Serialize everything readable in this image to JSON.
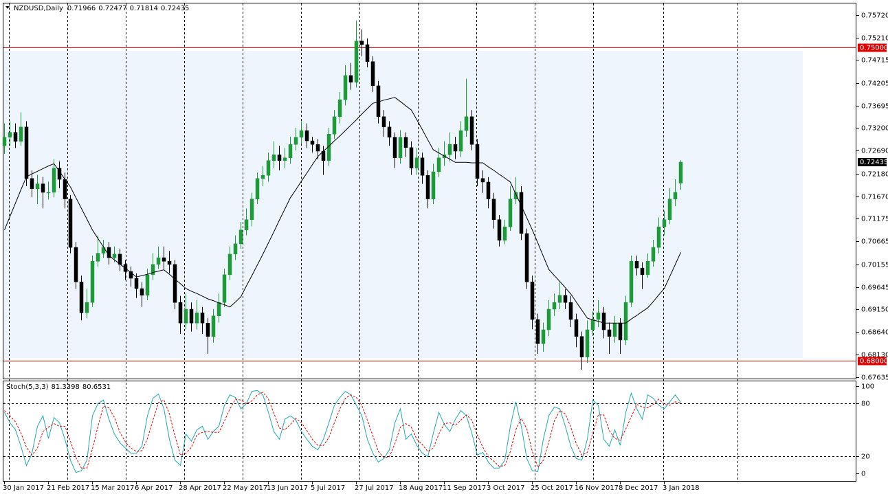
{
  "chart_data": [
    {
      "type": "candlestick",
      "symbol": "NZDUSD,Daily",
      "x": [
        "30 Jan 2017",
        null,
        null,
        null,
        null,
        null,
        null,
        null,
        "21 Feb 2017",
        null,
        null,
        null,
        null,
        null,
        null,
        null,
        "15 Mar 2017",
        null,
        null,
        null,
        null,
        null,
        null,
        null,
        "6 Apr 2017",
        null,
        null,
        null,
        null,
        null,
        null,
        null,
        "28 Apr 2017",
        null,
        null,
        null,
        null,
        null,
        null,
        null,
        "22 May 2017",
        null,
        null,
        null,
        null,
        null,
        null,
        null,
        "13 Jun 2017",
        null,
        null,
        null,
        null,
        null,
        null,
        null,
        "5 Jul 2017",
        null,
        null,
        null,
        null,
        null,
        null,
        null,
        "27 Jul 2017",
        null,
        null,
        null,
        null,
        null,
        null,
        null,
        "18 Aug 2017",
        null,
        null,
        null,
        null,
        null,
        null,
        null,
        "11 Sep 2017",
        null,
        null,
        null,
        null,
        null,
        null,
        null,
        "3 Oct 2017",
        null,
        null,
        null,
        null,
        null,
        null,
        null,
        "25 Oct 2017",
        null,
        null,
        null,
        null,
        null,
        null,
        null,
        "16 Nov 2017",
        null,
        null,
        null,
        null,
        null,
        null,
        null,
        "8 Dec 2017",
        null,
        null,
        null,
        null,
        null,
        null,
        null,
        "3 Jan 2018",
        null,
        null,
        null
      ],
      "open": [
        0.728,
        0.7299,
        0.731,
        0.729,
        0.7322,
        0.7207,
        0.7184,
        0.7195,
        0.7176,
        0.7176,
        0.723,
        0.7205,
        0.7161,
        0.7053,
        0.6976,
        0.6907,
        0.693,
        0.7022,
        0.704,
        0.7053,
        0.703,
        0.7038,
        0.7015,
        0.6999,
        0.6984,
        0.6961,
        0.6946,
        0.6992,
        0.7015,
        0.703,
        0.7022,
        0.7015,
        0.693,
        0.6884,
        0.6915,
        0.6884,
        0.6907,
        0.6884,
        0.6854,
        0.69,
        0.693,
        0.6992,
        0.7038,
        0.7061,
        0.7092,
        0.7115,
        0.7161,
        0.7207,
        0.7214,
        0.7247,
        0.726,
        0.7247,
        0.7253,
        0.7283,
        0.7299,
        0.7314,
        0.7291,
        0.7283,
        0.7268,
        0.7247,
        0.7306,
        0.7345,
        0.7383,
        0.7437,
        0.7422,
        0.7514,
        0.7506,
        0.7468,
        0.7414,
        0.7345,
        0.7322,
        0.7299,
        0.7253,
        0.7299,
        0.7276,
        0.723,
        0.7253,
        0.7214,
        0.7161,
        0.7222,
        0.7253,
        0.726,
        0.7283,
        0.7268,
        0.7314,
        0.7345,
        0.7283,
        0.7207,
        0.7199,
        0.7161,
        0.7115,
        0.7069,
        0.7099,
        0.7161,
        0.7176,
        0.7084,
        0.6976,
        0.6892,
        0.6838,
        0.6869,
        0.6915,
        0.693,
        0.6946,
        0.693,
        0.6892,
        0.6854,
        0.6808,
        0.6869,
        0.6892,
        0.6907,
        0.6869,
        0.6854,
        0.6884,
        0.6846,
        0.693,
        0.7022,
        0.7007,
        0.6992,
        0.7022,
        0.7053,
        0.7099,
        0.7115,
        0.7161,
        0.71966
      ],
      "high": [
        0.733,
        0.7335,
        0.733,
        0.7355,
        0.7335,
        0.7225,
        0.7215,
        0.721,
        0.72,
        0.725,
        0.7245,
        0.722,
        0.717,
        0.7065,
        0.699,
        0.696,
        0.7035,
        0.708,
        0.707,
        0.7065,
        0.7055,
        0.705,
        0.7025,
        0.701,
        0.6995,
        0.6975,
        0.7005,
        0.704,
        0.7055,
        0.7055,
        0.7045,
        0.7025,
        0.6945,
        0.695,
        0.693,
        0.6935,
        0.692,
        0.6895,
        0.6915,
        0.695,
        0.7005,
        0.7055,
        0.708,
        0.711,
        0.714,
        0.7175,
        0.722,
        0.7235,
        0.7265,
        0.729,
        0.728,
        0.7275,
        0.73,
        0.732,
        0.7335,
        0.733,
        0.73,
        0.7295,
        0.728,
        0.732,
        0.736,
        0.74,
        0.746,
        0.7465,
        0.756,
        0.754,
        0.752,
        0.748,
        0.7425,
        0.736,
        0.7335,
        0.731,
        0.7315,
        0.731,
        0.729,
        0.7275,
        0.7265,
        0.7225,
        0.724,
        0.7275,
        0.729,
        0.731,
        0.73,
        0.7335,
        0.743,
        0.736,
        0.7295,
        0.7225,
        0.721,
        0.7175,
        0.7125,
        0.7115,
        0.719,
        0.721,
        0.719,
        0.7095,
        0.699,
        0.6905,
        0.6885,
        0.6935,
        0.695,
        0.6975,
        0.696,
        0.6945,
        0.6905,
        0.6865,
        0.689,
        0.691,
        0.6935,
        0.692,
        0.6885,
        0.69,
        0.6895,
        0.6945,
        0.7035,
        0.7035,
        0.702,
        0.704,
        0.707,
        0.712,
        0.7135,
        0.7185,
        0.7205,
        0.72477
      ],
      "low": [
        0.7262,
        0.728,
        0.7275,
        0.728,
        0.719,
        0.7165,
        0.715,
        0.714,
        0.716,
        0.7165,
        0.7185,
        0.714,
        0.704,
        0.696,
        0.689,
        0.6895,
        0.692,
        0.701,
        0.703,
        0.7015,
        0.702,
        0.7,
        0.698,
        0.6965,
        0.694,
        0.692,
        0.6935,
        0.698,
        0.7005,
        0.7005,
        0.6995,
        0.6915,
        0.686,
        0.687,
        0.6865,
        0.687,
        0.686,
        0.6815,
        0.684,
        0.6885,
        0.692,
        0.698,
        0.7025,
        0.705,
        0.708,
        0.71,
        0.715,
        0.719,
        0.72,
        0.723,
        0.7225,
        0.723,
        0.724,
        0.727,
        0.7285,
        0.7275,
        0.7265,
        0.725,
        0.7215,
        0.7235,
        0.7295,
        0.733,
        0.737,
        0.7405,
        0.741,
        0.748,
        0.7455,
        0.74,
        0.733,
        0.73,
        0.728,
        0.723,
        0.724,
        0.7255,
        0.7215,
        0.7215,
        0.7195,
        0.714,
        0.715,
        0.721,
        0.7235,
        0.7245,
        0.725,
        0.7255,
        0.73,
        0.727,
        0.719,
        0.7175,
        0.714,
        0.7095,
        0.7055,
        0.706,
        0.709,
        0.715,
        0.707,
        0.696,
        0.687,
        0.6815,
        0.682,
        0.6855,
        0.69,
        0.6915,
        0.6915,
        0.6875,
        0.683,
        0.678,
        0.6795,
        0.6855,
        0.6875,
        0.685,
        0.6815,
        0.684,
        0.6815,
        0.6835,
        0.692,
        0.699,
        0.696,
        0.6985,
        0.701,
        0.704,
        0.708,
        0.7105,
        0.7145,
        0.71814
      ],
      "close": [
        0.7299,
        0.731,
        0.729,
        0.7322,
        0.7207,
        0.7184,
        0.7195,
        0.7176,
        0.7176,
        0.723,
        0.7205,
        0.7161,
        0.7053,
        0.6976,
        0.6907,
        0.693,
        0.7022,
        0.704,
        0.7053,
        0.703,
        0.7038,
        0.7015,
        0.6999,
        0.6984,
        0.6961,
        0.6946,
        0.6992,
        0.7015,
        0.703,
        0.7022,
        0.7015,
        0.693,
        0.6884,
        0.6915,
        0.6884,
        0.6907,
        0.6884,
        0.6854,
        0.69,
        0.693,
        0.6992,
        0.7038,
        0.7061,
        0.7092,
        0.7115,
        0.7161,
        0.7207,
        0.7214,
        0.7247,
        0.726,
        0.7247,
        0.7253,
        0.7283,
        0.7299,
        0.7314,
        0.7291,
        0.7283,
        0.7268,
        0.7247,
        0.7306,
        0.7345,
        0.7383,
        0.7437,
        0.7422,
        0.7514,
        0.7506,
        0.7468,
        0.7414,
        0.7345,
        0.7322,
        0.7299,
        0.7253,
        0.7299,
        0.7276,
        0.723,
        0.7253,
        0.7214,
        0.7161,
        0.7222,
        0.7253,
        0.726,
        0.7283,
        0.7268,
        0.7314,
        0.7345,
        0.7283,
        0.7207,
        0.7199,
        0.7161,
        0.7115,
        0.7069,
        0.7099,
        0.7161,
        0.7176,
        0.7084,
        0.6976,
        0.6892,
        0.6838,
        0.6869,
        0.6915,
        0.693,
        0.6946,
        0.693,
        0.6892,
        0.6854,
        0.6808,
        0.6869,
        0.6892,
        0.6907,
        0.6869,
        0.6854,
        0.6884,
        0.6846,
        0.693,
        0.7022,
        0.7007,
        0.6992,
        0.7022,
        0.7053,
        0.7099,
        0.7115,
        0.7161,
        0.7176,
        0.72435
      ],
      "up_color": "#1f9a3a",
      "down_color": "#000000",
      "series": [
        {
          "color": "#000000",
          "values": [
            0.7092,
            0.7122,
            0.7152,
            0.7182,
            0.7211,
            0.7217,
            0.7223,
            0.7229,
            0.7235,
            0.724,
            0.7223,
            0.7205,
            0.7188,
            0.7164,
            0.714,
            0.7116,
            0.7092,
            0.7073,
            0.7054,
            0.7035,
            0.7025,
            0.7016,
            0.7006,
            0.6997,
            0.6987,
            0.699,
            0.6993,
            0.6997,
            0.7,
            0.7003,
            0.6993,
            0.6982,
            0.6972,
            0.6961,
            0.6955,
            0.695,
            0.6944,
            0.6938,
            0.6934,
            0.6929,
            0.6925,
            0.692,
            0.6931,
            0.6943,
            0.6967,
            0.699,
            0.7014,
            0.7038,
            0.7063,
            0.7088,
            0.7114,
            0.7139,
            0.7164,
            0.7182,
            0.7201,
            0.7219,
            0.7238,
            0.7256,
            0.7268,
            0.7279,
            0.7291,
            0.7302,
            0.7314,
            0.7326,
            0.7338,
            0.7351,
            0.7363,
            0.7375,
            0.7378,
            0.7382,
            0.7385,
            0.7388,
            0.7379,
            0.7369,
            0.736,
            0.7338,
            0.7316,
            0.7293,
            0.7271,
            0.7264,
            0.7257,
            0.725,
            0.7243,
            0.7243,
            0.7243,
            0.7242,
            0.7242,
            0.7242,
            0.7233,
            0.7225,
            0.7216,
            0.7208,
            0.7199,
            0.7172,
            0.7146,
            0.7119,
            0.7092,
            0.7063,
            0.7033,
            0.7004,
            0.699,
            0.6977,
            0.6963,
            0.6949,
            0.6931,
            0.6913,
            0.6895,
            0.6891,
            0.6888,
            0.6884,
            0.6884,
            0.6884,
            0.6884,
            0.6884,
            0.6893,
            0.6901,
            0.691,
            0.6918,
            0.6932,
            0.6947,
            0.6961,
            0.6988,
            0.7015,
            0.7042
          ]
        }
      ],
      "ylim": [
        0.676,
        0.7598
      ],
      "yticks": [
        {
          "value": 0.7572,
          "label": "0.75720"
        },
        {
          "value": 0.7521,
          "label": "0.75210"
        },
        0.74715,
        0.74205,
        0.73695,
        {
          "value": 0.732,
          "label": "0.73200"
        },
        {
          "value": 0.7269,
          "label": "0.72690"
        },
        {
          "value": 0.7218,
          "label": "0.72180"
        },
        {
          "value": 0.7167,
          "label": "0.71670"
        },
        0.71175,
        0.70665,
        0.70155,
        0.69645,
        {
          "value": 0.6915,
          "label": "0.69150"
        },
        {
          "value": 0.6864,
          "label": "0.68640"
        },
        {
          "value": 0.6813,
          "label": "0.68130"
        },
        0.67635
      ],
      "hlines": [
        {
          "value": 0.75,
          "label": "0.75000"
        },
        {
          "value": 0.68,
          "label": "0.68000"
        }
      ],
      "hline_color": "#e00000"
    },
    {
      "type": "stochastic",
      "label": "Stoch(5,3,3)",
      "series": [
        {
          "color": "#20a8b0",
          "dashed": false,
          "values": [
            70,
            58,
            50,
            31,
            9,
            23,
            54,
            66,
            40,
            64,
            58,
            39,
            15,
            1,
            3,
            15,
            66,
            80,
            84,
            62,
            45,
            35,
            29,
            23,
            23,
            31,
            66,
            86,
            91,
            74,
            39,
            15,
            9,
            45,
            37,
            50,
            54,
            39,
            48,
            54,
            78,
            90,
            87,
            74,
            80,
            94,
            95,
            90,
            70,
            48,
            39,
            62,
            66,
            61,
            48,
            39,
            31,
            27,
            39,
            58,
            78,
            87,
            94,
            90,
            78,
            66,
            39,
            23,
            13,
            17,
            27,
            58,
            74,
            39,
            45,
            32,
            23,
            19,
            46,
            70,
            56,
            48,
            62,
            72,
            66,
            46,
            21,
            24,
            13,
            6,
            6,
            15,
            54,
            82,
            54,
            17,
            3,
            2,
            39,
            66,
            76,
            74,
            54,
            31,
            17,
            15,
            39,
            84,
            78,
            39,
            31,
            50,
            32,
            70,
            92,
            74,
            62,
            90,
            86,
            78,
            74,
            82,
            90,
            81.3398
          ]
        },
        {
          "color": "#e00000",
          "dashed": true,
          "values": [
            72,
            66,
            59,
            46,
            30,
            21,
            29,
            48,
            53,
            57,
            54,
            54,
            37,
            18,
            6,
            6,
            28,
            54,
            77,
            75,
            64,
            47,
            36,
            29,
            25,
            26,
            40,
            61,
            81,
            84,
            68,
            43,
            21,
            23,
            30,
            44,
            47,
            48,
            47,
            47,
            60,
            74,
            85,
            84,
            80,
            83,
            90,
            93,
            85,
            69,
            52,
            50,
            56,
            63,
            58,
            49,
            39,
            32,
            32,
            41,
            58,
            74,
            86,
            90,
            87,
            78,
            61,
            43,
            25,
            18,
            19,
            34,
            53,
            57,
            53,
            39,
            33,
            25,
            29,
            45,
            57,
            58,
            55,
            61,
            67,
            61,
            44,
            30,
            19,
            14,
            8,
            9,
            25,
            50,
            63,
            51,
            25,
            7,
            15,
            36,
            60,
            72,
            68,
            53,
            34,
            21,
            24,
            46,
            67,
            67,
            49,
            40,
            38,
            51,
            65,
            79,
            76,
            75,
            79,
            85,
            79,
            78,
            82,
            80.6531
          ]
        }
      ],
      "ylim": [
        -8.7,
        104.7
      ],
      "yticks": [
        100,
        80,
        20,
        0
      ],
      "levels": [
        80,
        20
      ]
    }
  ]
}
